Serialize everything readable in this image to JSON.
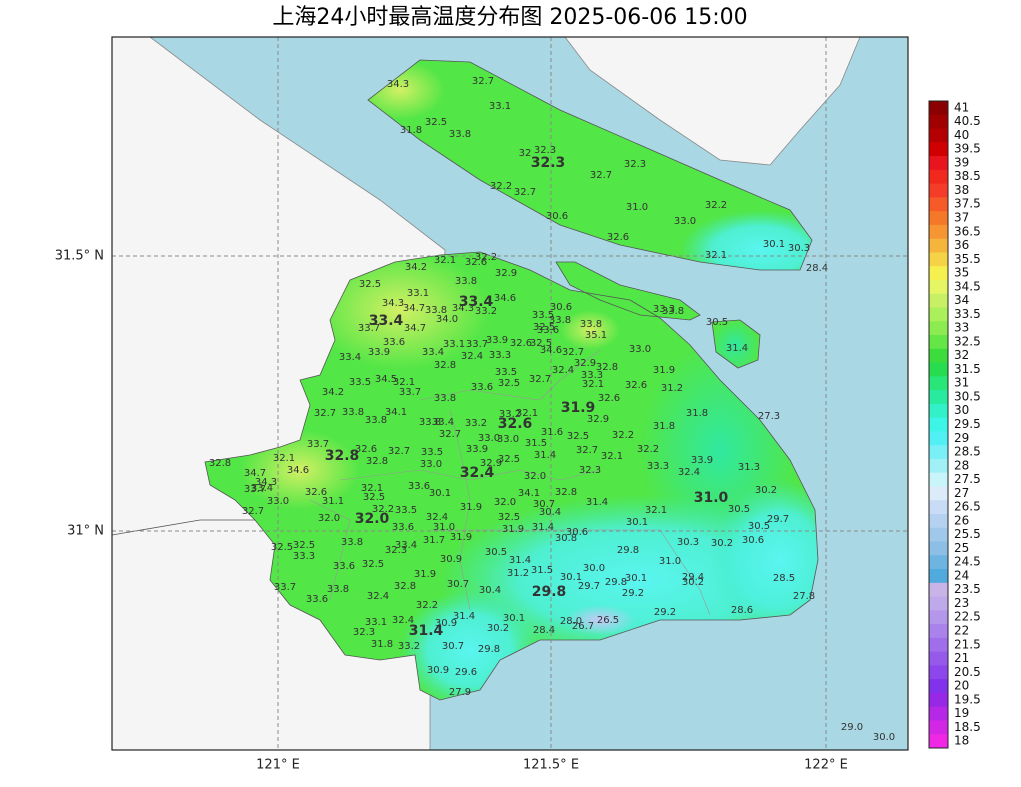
{
  "title": "上海24小时最高温度分布图 2025-06-06 15:00",
  "map": {
    "lat_labels": [
      "31.5° N",
      "31° N"
    ],
    "lon_labels": [
      "121° E",
      "121.5° E",
      "122° E"
    ]
  },
  "colorbar": {
    "levels": [
      41,
      40.5,
      40,
      39.5,
      39,
      38.5,
      38,
      37.5,
      37,
      36.5,
      36,
      35.5,
      35,
      34.5,
      34,
      33.5,
      33,
      32.5,
      32,
      31.5,
      31,
      30.5,
      30,
      29.5,
      29,
      28.5,
      28,
      27.5,
      27,
      26.5,
      26,
      25.5,
      25,
      24.5,
      24,
      23.5,
      23,
      22.5,
      22,
      21.5,
      21,
      20.5,
      20,
      19.5,
      19,
      18.5,
      18
    ],
    "colors": [
      "#8b0000",
      "#a00000",
      "#b40000",
      "#d00000",
      "#e8141e",
      "#f0281e",
      "#f53c28",
      "#f55a28",
      "#f57828",
      "#f59632",
      "#f5b43c",
      "#f5d246",
      "#f5f050",
      "#e6f564",
      "#c8f064",
      "#aaf05a",
      "#8ceb50",
      "#64e646",
      "#3cdc3c",
      "#28dc50",
      "#28e678",
      "#28eba0",
      "#32f0c8",
      "#3cf5e6",
      "#50f0f5",
      "#78f0f5",
      "#a0f0f5",
      "#c8f5fa",
      "#dcebfa",
      "#c8dcf5",
      "#b4d2f0",
      "#a0c8eb",
      "#8cbee6",
      "#6eb4e1",
      "#50aadc",
      "#c8b4e6",
      "#beaaeb",
      "#b496eb",
      "#aa82eb",
      "#a06eeb",
      "#965aeb",
      "#8c46eb",
      "#8232eb",
      "#9628e6",
      "#b428e6",
      "#d228e6",
      "#f028e6"
    ]
  },
  "district_max": [
    32.3,
    33.4,
    33.4,
    31.9,
    32.6,
    32.8,
    32.4,
    {
      "value": 31,
      "label": "31.0"
    },
    {
      "value": 32,
      "label": "32.0"
    },
    29.8,
    31.4
  ],
  "stations": [
    34.3,
    32.7,
    33.1,
    32.5,
    31.8,
    33.8,
    32.3,
    32,
    32.3,
    32.7,
    32.2,
    32.7,
    30.6,
    {
      "value": 31,
      "label": "31.0"
    },
    32.2,
    {
      "value": 33,
      "label": "33.0"
    },
    32.6,
    30.1,
    30.3,
    32.1,
    28.4,
    33.3,
    33.8,
    30.5,
    31.4,
    32.2,
    34.2,
    32.1,
    32.6,
    32.9,
    32.5,
    33.8,
    33.1,
    34.6,
    30.6,
    34.3,
    34.7,
    33.8,
    34.3,
    33.2,
    33.5,
    33.8,
    33.8,
    34.7,
    33.7,
    {
      "value": 34,
      "label": "34.0"
    },
    32.5,
    35.1,
    33.6,
    33.6,
    33.1,
    33.7,
    33.9,
    32.6,
    32.5,
    34.6,
    33.9,
    33.4,
    32.4,
    33.3,
    32.7,
    {
      "value": 33,
      "label": "33.0"
    },
    33.4,
    32.8,
    32.9,
    32.8,
    32.4,
    33.5,
    31.9,
    34.5,
    33.5,
    32.1,
    33.3,
    32.7,
    32.5,
    33.6,
    32.1,
    33.7,
    32.6,
    31.2,
    34.2,
    33.8,
    32.6,
    31.8,
    27.3,
    32.7,
    33.8,
    34.1,
    33.8,
    33.2,
    32.1,
    32.9,
    33.8,
    33.4,
    33.2,
    31.8,
    32.7,
    {
      "value": 33,
      "label": "33.0"
    },
    {
      "value": 33,
      "label": "33.0"
    },
    31.6,
    32.5,
    32.2,
    33.7,
    32.6,
    33.5,
    33.9,
    31.5,
    32.7,
    32.1,
    32.2,
    33.9,
    32.1,
    32.7,
    32.8,
    {
      "value": 33,
      "label": "33.0"
    },
    31.4,
    32.9,
    32.5,
    32.8,
    34.6,
    34.7,
    32.3,
    33.3,
    32.4,
    31.3,
    34.3,
    33.4,
    33.7,
    33.6,
    {
      "value": 32,
      "label": "32.0"
    },
    32.6,
    34.1,
    32.8,
    30.2,
    32.1,
    {
      "value": 33,
      "label": "33.0"
    },
    31.1,
    32.5,
    30.1,
    31.9,
    {
      "value": 32,
      "label": "32.0"
    },
    30.7,
    30.4,
    31.4,
    32.7,
    32.2,
    33.5,
    32.4,
    32.5,
    32.1,
    30.5,
    {
      "value": 32,
      "label": "32.0"
    },
    33.6,
    {
      "value": 31,
      "label": "31.0"
    },
    31.9,
    31.4,
    30.1,
    29.7,
    30.6,
    30.5,
    30.8,
    31.9,
    31.7,
    33.8,
    33.4,
    30.3,
    30.2,
    30.6,
    32.5,
    32.5,
    32.3,
    29.8,
    33.3,
    30.5,
    31.4,
    30.9,
    {
      "value": 31,
      "label": "31.0"
    },
    33.6,
    32.5,
    {
      "value": 30,
      "label": "30.0"
    },
    31.2,
    31.5,
    31.9,
    30.1,
    29.4,
    28.5,
    33.7,
    33.8,
    32.8,
    30.7,
    30.4,
    29.7,
    29.8,
    30.1,
    30.2,
    29.2,
    27.8,
    33.6,
    32.4,
    32.2,
    29.2,
    28.6,
    31.4,
    30.1,
    {
      "value": 28,
      "label": "28.0"
    },
    26.5,
    33.1,
    32.4,
    30.9,
    30.2,
    26.7,
    28.4,
    32.3,
    31.8,
    33.2,
    30.7,
    29.8,
    30.9,
    29.6,
    27.9,
    {
      "value": 29,
      "label": "29.0"
    },
    {
      "value": 30,
      "label": "30.0"
    }
  ]
}
